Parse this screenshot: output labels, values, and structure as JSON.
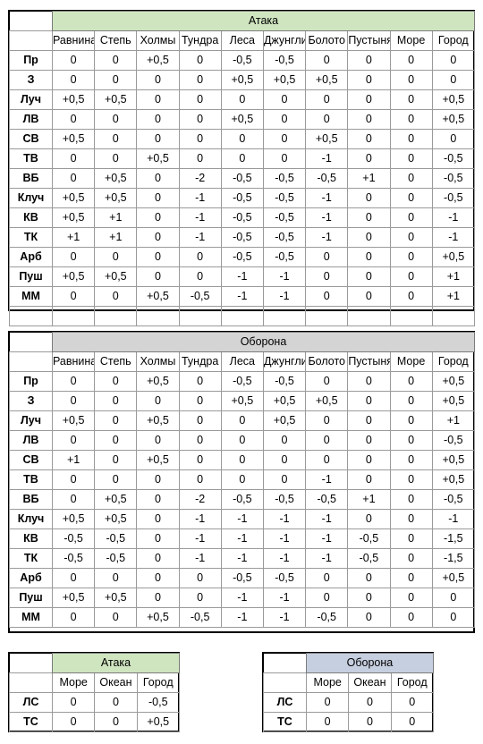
{
  "columns": [
    "Равнина",
    "Степь",
    "Холмы",
    "Тундра",
    "Леса",
    "Джунгли",
    "Болото",
    "Пустыня",
    "Море",
    "Город"
  ],
  "attack": {
    "title": "Атака",
    "rows": [
      {
        "label": "Пр",
        "values": [
          "0",
          "0",
          "+0,5",
          "0",
          "-0,5",
          "-0,5",
          "0",
          "0",
          "0",
          "0"
        ]
      },
      {
        "label": "З",
        "values": [
          "0",
          "0",
          "0",
          "0",
          "+0,5",
          "+0,5",
          "+0,5",
          "0",
          "0",
          "0"
        ]
      },
      {
        "label": "Луч",
        "values": [
          "+0,5",
          "+0,5",
          "0",
          "0",
          "0",
          "0",
          "0",
          "0",
          "0",
          "+0,5"
        ]
      },
      {
        "label": "ЛВ",
        "values": [
          "0",
          "0",
          "0",
          "0",
          "+0,5",
          "0",
          "0",
          "0",
          "0",
          "+0,5"
        ]
      },
      {
        "label": "СВ",
        "values": [
          "+0,5",
          "0",
          "0",
          "0",
          "0",
          "0",
          "+0,5",
          "0",
          "0",
          "0"
        ]
      },
      {
        "label": "ТВ",
        "values": [
          "0",
          "0",
          "+0,5",
          "0",
          "0",
          "0",
          "-1",
          "0",
          "0",
          "-0,5"
        ]
      },
      {
        "label": "ВБ",
        "values": [
          "0",
          "+0,5",
          "0",
          "-2",
          "-0,5",
          "-0,5",
          "-0,5",
          "+1",
          "0",
          "-0,5"
        ]
      },
      {
        "label": "Клуч",
        "values": [
          "+0,5",
          "+0,5",
          "0",
          "-1",
          "-0,5",
          "-0,5",
          "-1",
          "0",
          "0",
          "-0,5"
        ]
      },
      {
        "label": "КВ",
        "values": [
          "+0,5",
          "+1",
          "0",
          "-1",
          "-0,5",
          "-0,5",
          "-1",
          "0",
          "0",
          "-1"
        ]
      },
      {
        "label": "ТК",
        "values": [
          "+1",
          "+1",
          "0",
          "-1",
          "-0,5",
          "-0,5",
          "-1",
          "0",
          "0",
          "-1"
        ]
      },
      {
        "label": "Арб",
        "values": [
          "0",
          "0",
          "0",
          "0",
          "-0,5",
          "-0,5",
          "0",
          "0",
          "0",
          "+0,5"
        ]
      },
      {
        "label": "Пуш",
        "values": [
          "+0,5",
          "+0,5",
          "0",
          "0",
          "-1",
          "-1",
          "0",
          "0",
          "0",
          "+1"
        ]
      },
      {
        "label": "ММ",
        "values": [
          "0",
          "0",
          "+0,5",
          "-0,5",
          "-1",
          "-1",
          "0",
          "0",
          "0",
          "+1"
        ]
      }
    ]
  },
  "defense": {
    "title": "Оборона",
    "rows": [
      {
        "label": "Пр",
        "values": [
          "0",
          "0",
          "+0,5",
          "0",
          "-0,5",
          "-0,5",
          "0",
          "0",
          "0",
          "+0,5"
        ]
      },
      {
        "label": "З",
        "values": [
          "0",
          "0",
          "0",
          "0",
          "+0,5",
          "+0,5",
          "+0,5",
          "0",
          "0",
          "+0,5"
        ]
      },
      {
        "label": "Луч",
        "values": [
          "+0,5",
          "0",
          "+0,5",
          "0",
          "0",
          "+0,5",
          "0",
          "0",
          "0",
          "+1"
        ]
      },
      {
        "label": "ЛВ",
        "values": [
          "0",
          "0",
          "0",
          "0",
          "0",
          "0",
          "0",
          "0",
          "0",
          "-0,5"
        ]
      },
      {
        "label": "СВ",
        "values": [
          "+1",
          "0",
          "+0,5",
          "0",
          "0",
          "0",
          "0",
          "0",
          "0",
          "+0,5"
        ]
      },
      {
        "label": "ТВ",
        "values": [
          "0",
          "0",
          "0",
          "0",
          "0",
          "0",
          "-1",
          "0",
          "0",
          "+0,5"
        ]
      },
      {
        "label": "ВБ",
        "values": [
          "0",
          "+0,5",
          "0",
          "-2",
          "-0,5",
          "-0,5",
          "-0,5",
          "+1",
          "0",
          "-0,5"
        ]
      },
      {
        "label": "Клуч",
        "values": [
          "+0,5",
          "+0,5",
          "0",
          "-1",
          "-1",
          "-1",
          "-1",
          "0",
          "0",
          "-1"
        ]
      },
      {
        "label": "КВ",
        "values": [
          "-0,5",
          "-0,5",
          "0",
          "-1",
          "-1",
          "-1",
          "-1",
          "-0,5",
          "0",
          "-1,5"
        ]
      },
      {
        "label": "ТК",
        "values": [
          "-0,5",
          "-0,5",
          "0",
          "-1",
          "-1",
          "-1",
          "-1",
          "-0,5",
          "0",
          "-1,5"
        ]
      },
      {
        "label": "Арб",
        "values": [
          "0",
          "0",
          "0",
          "0",
          "-0,5",
          "-0,5",
          "0",
          "0",
          "0",
          "+0,5"
        ]
      },
      {
        "label": "Пуш",
        "values": [
          "+0,5",
          "+0,5",
          "0",
          "0",
          "-1",
          "-1",
          "0",
          "0",
          "0",
          "0"
        ]
      },
      {
        "label": "ММ",
        "values": [
          "0",
          "0",
          "+0,5",
          "-0,5",
          "-1",
          "-1",
          "-0,5",
          "0",
          "0",
          "0"
        ]
      }
    ]
  },
  "small_columns": [
    "Море",
    "Океан",
    "Город"
  ],
  "naval_attack": {
    "title": "Атака",
    "rows": [
      {
        "label": "ЛС",
        "values": [
          "0",
          "0",
          "-0,5"
        ]
      },
      {
        "label": "ТС",
        "values": [
          "0",
          "0",
          "+0,5"
        ]
      }
    ]
  },
  "naval_defense": {
    "title": "Оборона",
    "rows": [
      {
        "label": "ЛС",
        "values": [
          "0",
          "0",
          "0"
        ]
      },
      {
        "label": "ТС",
        "values": [
          "0",
          "0",
          "0"
        ]
      }
    ]
  },
  "colors": {
    "attack_header": "#cfe5c0",
    "defense_header": "#d4d4d4",
    "naval_defense_header": "#c6cfdf"
  }
}
